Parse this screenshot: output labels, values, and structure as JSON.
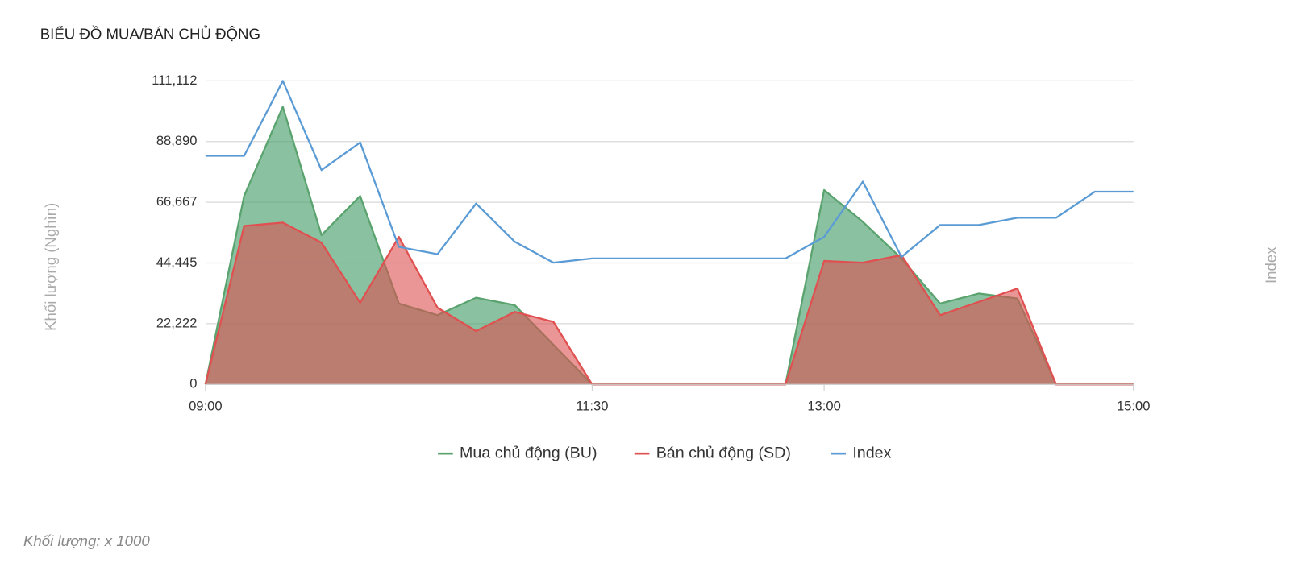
{
  "chart_data": {
    "type": "area",
    "title": "BIỂU ĐỒ MUA/BÁN CHỦ ĐỘNG",
    "y_label": "Khối lượng (Nghìn)",
    "y2_label": "Index",
    "footnote": "Khối lượng: x 1000",
    "x": [
      "09:00",
      "09:15",
      "09:30",
      "09:45",
      "10:00",
      "10:15",
      "10:30",
      "10:45",
      "11:00",
      "11:15",
      "11:30",
      "11:45",
      "12:00",
      "12:15",
      "12:30",
      "12:45",
      "13:00",
      "13:15",
      "13:30",
      "13:45",
      "14:00",
      "14:15",
      "14:30",
      "14:45",
      "15:00"
    ],
    "xlim": [
      "09:00",
      "15:00"
    ],
    "xticks": [
      "09:00",
      "11:30",
      "13:00",
      "15:00"
    ],
    "ylim": [
      0,
      111112
    ],
    "yticks": [
      0,
      {
        "value": 22222,
        "label": "22,222"
      },
      {
        "value": 44445,
        "label": "44,445"
      },
      {
        "value": 66667,
        "label": "66,667"
      },
      {
        "value": 88890,
        "label": "88,890"
      },
      {
        "value": 111112,
        "label": "111,112"
      }
    ],
    "y2lim": [
      0,
      100
    ],
    "grid": true,
    "legend": "bottom",
    "series": [
      {
        "name": "Mua chủ động (BU)",
        "color": "#5aa36e",
        "fill": "rgba(76,160,110,0.65)",
        "values": [
          0,
          69000,
          101660,
          54650,
          69000,
          29600,
          25340,
          31750,
          29000,
          14500,
          0,
          0,
          0,
          0,
          0,
          0,
          71140,
          59530,
          46100,
          29600,
          33280,
          31450,
          0,
          0,
          0
        ]
      },
      {
        "name": "Bán chủ động (SD)",
        "color": "#e05050",
        "fill": "rgba(220,80,80,0.6)",
        "values": [
          0,
          58000,
          59230,
          51900,
          29920,
          54040,
          28090,
          19540,
          26560,
          22900,
          0,
          0,
          0,
          0,
          0,
          0,
          45180,
          44570,
          47320,
          25340,
          30220,
          35110,
          0,
          0,
          0
        ]
      },
      {
        "name": "Index",
        "color": "#5b9bd5",
        "axis": "y2",
        "values": [
          75.3,
          75.3,
          100,
          70.6,
          79.7,
          45.3,
          42.9,
          59.6,
          47.0,
          40.1,
          41.5,
          41.5,
          41.5,
          41.5,
          41.5,
          41.5,
          48.6,
          66.8,
          42.0,
          52.5,
          52.5,
          54.9,
          54.9,
          63.5,
          63.5
        ]
      }
    ]
  }
}
